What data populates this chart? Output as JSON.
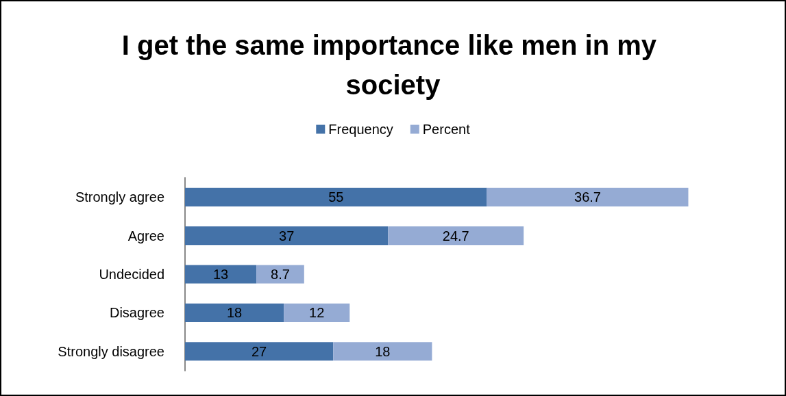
{
  "chart_data": {
    "type": "bar",
    "title": "I get the same importance like men in my society",
    "orientation": "horizontal",
    "stacked": true,
    "data_labels": true,
    "legend": "top",
    "categories": [
      "Strongly agree",
      "Agree",
      "Undecided",
      "Disagree",
      "Strongly disagree"
    ],
    "series": [
      {
        "name": "Frequency",
        "color": "#4472a8",
        "values": [
          55,
          37,
          13,
          18,
          27
        ]
      },
      {
        "name": "Percent",
        "color": "#95abd4",
        "values": [
          36.7,
          24.7,
          8.7,
          12,
          18
        ]
      }
    ]
  }
}
